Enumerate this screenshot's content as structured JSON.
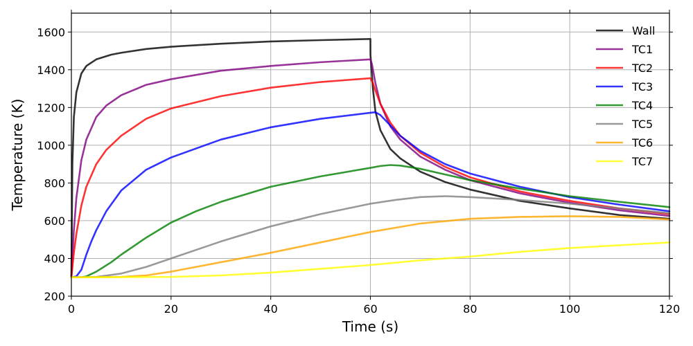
{
  "chart_data": {
    "type": "line",
    "title": "",
    "xlabel": "Time (s)",
    "ylabel": "Temperature (K)",
    "xlim": [
      0,
      120
    ],
    "ylim": [
      200,
      1700
    ],
    "xticks": [
      0,
      20,
      40,
      60,
      80,
      100,
      120
    ],
    "yticks": [
      200,
      400,
      600,
      800,
      1000,
      1200,
      1400,
      1600
    ],
    "grid": true,
    "legend_position": "top-right",
    "series": [
      {
        "name": "Wall",
        "color": "#000000",
        "x": [
          0,
          0.2,
          0.5,
          1,
          2,
          3,
          5,
          8,
          10,
          15,
          20,
          30,
          40,
          50,
          60,
          60.01,
          60.5,
          61,
          62,
          64,
          66,
          70,
          75,
          80,
          90,
          100,
          110,
          120
        ],
        "y": [
          300,
          900,
          1150,
          1280,
          1380,
          1420,
          1455,
          1480,
          1490,
          1510,
          1522,
          1538,
          1550,
          1557,
          1563,
          1480,
          1300,
          1180,
          1080,
          980,
          930,
          860,
          805,
          765,
          705,
          665,
          630,
          610
        ]
      },
      {
        "name": "TC1",
        "color": "#800080",
        "x": [
          0,
          0.5,
          1,
          2,
          3,
          5,
          7,
          10,
          15,
          20,
          30,
          40,
          50,
          60,
          60.3,
          61,
          62,
          64,
          66,
          70,
          75,
          80,
          90,
          100,
          110,
          120
        ],
        "y": [
          300,
          550,
          720,
          920,
          1030,
          1150,
          1210,
          1265,
          1320,
          1350,
          1395,
          1420,
          1440,
          1455,
          1430,
          1330,
          1220,
          1100,
          1030,
          940,
          870,
          815,
          745,
          695,
          655,
          625
        ]
      },
      {
        "name": "TC2",
        "color": "#ff0000",
        "x": [
          0,
          0.5,
          1,
          2,
          3,
          5,
          7,
          10,
          15,
          20,
          30,
          40,
          50,
          60,
          60.5,
          61,
          62,
          64,
          66,
          70,
          75,
          80,
          90,
          100,
          110,
          120
        ],
        "y": [
          300,
          430,
          530,
          680,
          780,
          900,
          975,
          1050,
          1140,
          1195,
          1260,
          1305,
          1335,
          1355,
          1330,
          1290,
          1220,
          1120,
          1050,
          960,
          885,
          830,
          755,
          705,
          665,
          635
        ]
      },
      {
        "name": "TC3",
        "color": "#0000ff",
        "x": [
          0,
          1,
          2,
          3,
          4,
          5,
          7,
          10,
          15,
          20,
          30,
          40,
          50,
          60,
          61,
          62,
          64,
          66,
          70,
          75,
          80,
          90,
          100,
          110,
          120
        ],
        "y": [
          300,
          305,
          340,
          420,
          490,
          550,
          650,
          760,
          870,
          935,
          1030,
          1095,
          1140,
          1172,
          1175,
          1160,
          1105,
          1050,
          970,
          900,
          850,
          780,
          725,
          685,
          650
        ]
      },
      {
        "name": "TC4",
        "color": "#008000",
        "x": [
          0,
          2,
          3,
          5,
          8,
          10,
          15,
          20,
          25,
          30,
          40,
          50,
          60,
          62,
          64,
          66,
          70,
          75,
          80,
          90,
          100,
          110,
          120
        ],
        "y": [
          300,
          300,
          305,
          330,
          380,
          420,
          510,
          590,
          650,
          700,
          780,
          835,
          880,
          890,
          895,
          892,
          875,
          845,
          815,
          770,
          730,
          700,
          672
        ]
      },
      {
        "name": "TC5",
        "color": "#808080",
        "x": [
          0,
          5,
          10,
          15,
          20,
          25,
          30,
          40,
          50,
          60,
          65,
          70,
          75,
          80,
          90,
          100,
          110,
          120
        ],
        "y": [
          300,
          302,
          320,
          355,
          400,
          445,
          490,
          570,
          635,
          690,
          710,
          725,
          730,
          725,
          710,
          690,
          665,
          640
        ]
      },
      {
        "name": "TC6",
        "color": "#ffa500",
        "x": [
          0,
          10,
          15,
          20,
          30,
          40,
          50,
          60,
          70,
          80,
          90,
          100,
          110,
          120
        ],
        "y": [
          300,
          302,
          310,
          330,
          380,
          430,
          485,
          540,
          585,
          610,
          620,
          624,
          620,
          607
        ]
      },
      {
        "name": "TC7",
        "color": "#ffff00",
        "x": [
          0,
          20,
          30,
          40,
          50,
          60,
          70,
          80,
          90,
          100,
          110,
          120
        ],
        "y": [
          300,
          302,
          310,
          325,
          345,
          365,
          390,
          410,
          435,
          455,
          470,
          485
        ]
      }
    ]
  }
}
